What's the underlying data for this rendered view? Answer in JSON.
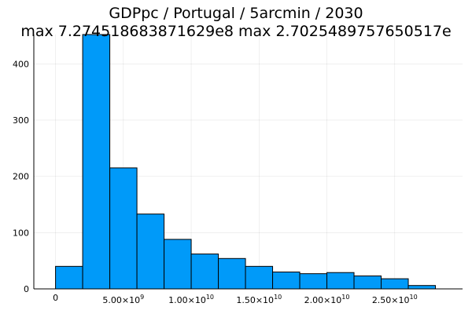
{
  "chart_data": {
    "type": "bar",
    "title": "GDPpc / Portugal / 5arcmin / 2030",
    "subtitle": "max 7.274518683871629e8  max 2.7025489757650517e",
    "xlabel": "",
    "ylabel": "",
    "bin_width": 2000000000,
    "bin_start": 0,
    "values": [
      40,
      452,
      215,
      133,
      88,
      62,
      54,
      40,
      30,
      27,
      29,
      23,
      18,
      6
    ],
    "xlim": [
      -1600000000,
      30000000000
    ],
    "ylim": [
      0,
      452
    ],
    "x_ticks": [
      {
        "value": 0,
        "label": "0",
        "exp": ""
      },
      {
        "value": 5000000000,
        "label": "5.00×10",
        "exp": "9"
      },
      {
        "value": 10000000000,
        "label": "1.00×10",
        "exp": "10"
      },
      {
        "value": 15000000000,
        "label": "1.50×10",
        "exp": "10"
      },
      {
        "value": 20000000000,
        "label": "2.00×10",
        "exp": "10"
      },
      {
        "value": 25000000000,
        "label": "2.50×10",
        "exp": "10"
      }
    ],
    "y_ticks": [
      {
        "value": 0,
        "label": "0"
      },
      {
        "value": 100,
        "label": "100"
      },
      {
        "value": 200,
        "label": "200"
      },
      {
        "value": 300,
        "label": "300"
      },
      {
        "value": 400,
        "label": "400"
      }
    ],
    "grid": true,
    "legend": "none",
    "bar_color": "#009af9"
  }
}
